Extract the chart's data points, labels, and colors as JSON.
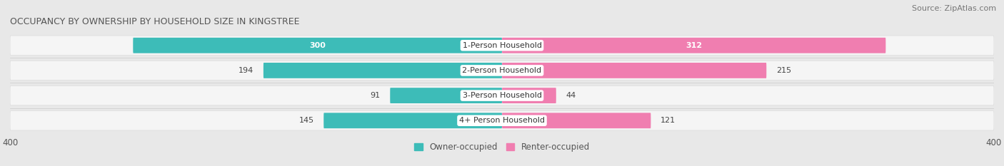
{
  "title": "OCCUPANCY BY OWNERSHIP BY HOUSEHOLD SIZE IN KINGSTREE",
  "source": "Source: ZipAtlas.com",
  "categories": [
    "1-Person Household",
    "2-Person Household",
    "3-Person Household",
    "4+ Person Household"
  ],
  "owner_values": [
    300,
    194,
    91,
    145
  ],
  "renter_values": [
    312,
    215,
    44,
    121
  ],
  "owner_color": "#3DBCB8",
  "renter_color": "#F07EB0",
  "owner_color_light": "#A8DEDC",
  "renter_color_light": "#F9C0D8",
  "axis_max": 400,
  "background_color": "#e8e8e8",
  "row_bg_color": "#f0f0f0",
  "title_fontsize": 9,
  "source_fontsize": 8,
  "label_fontsize": 8,
  "value_fontsize": 8,
  "tick_fontsize": 8.5,
  "legend_fontsize": 8.5
}
